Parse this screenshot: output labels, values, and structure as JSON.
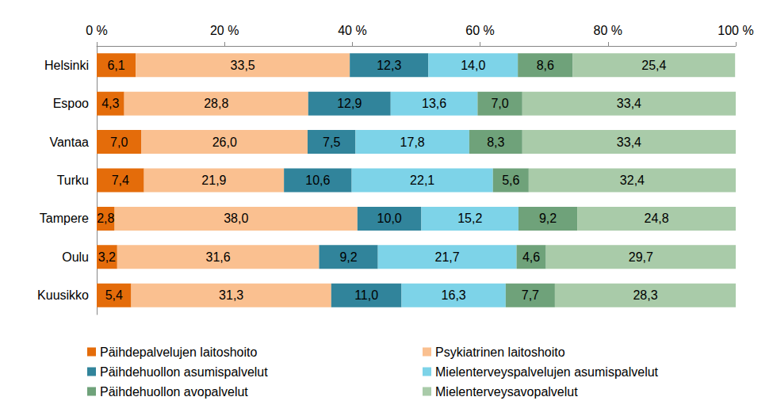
{
  "chart_data": {
    "type": "bar",
    "orientation": "horizontal",
    "stacked": true,
    "data_labels": true,
    "grid": false,
    "legend": "bottom",
    "categories": [
      "Helsinki",
      "Espoo",
      "Vantaa",
      "Turku",
      "Tampere",
      "Oulu",
      "Kuusikko"
    ],
    "xlim": [
      0,
      100
    ],
    "xticks": [
      {
        "value": 0,
        "label": "0 %"
      },
      {
        "value": 20,
        "label": "20 %"
      },
      {
        "value": 40,
        "label": "40 %"
      },
      {
        "value": 60,
        "label": "60 %"
      },
      {
        "value": 80,
        "label": "80 %"
      },
      {
        "value": 100,
        "label": "100 %"
      }
    ],
    "series": [
      {
        "name": "Päihdepalvelujen laitoshoito",
        "color": "#E46C0A",
        "values": [
          6.1,
          4.3,
          7.0,
          7.4,
          2.8,
          3.2,
          5.4
        ],
        "value_labels": [
          "6,1",
          "4,3",
          "7,0",
          "7,4",
          "2,8",
          "3,2",
          "5,4"
        ]
      },
      {
        "name": "Psykiatrinen laitoshoito",
        "color": "#FAC090",
        "values": [
          33.5,
          28.8,
          26.0,
          21.9,
          38.0,
          31.6,
          31.3
        ],
        "value_labels": [
          "33,5",
          "28,8",
          "26,0",
          "21,9",
          "38,0",
          "31,6",
          "31,3"
        ]
      },
      {
        "name": "Päihdehuollon asumispalvelut",
        "color": "#31849B",
        "values": [
          12.3,
          12.9,
          7.5,
          10.6,
          10.0,
          9.2,
          11.0
        ],
        "value_labels": [
          "12,3",
          "12,9",
          "7,5",
          "10,6",
          "10,0",
          "9,2",
          "11,0"
        ]
      },
      {
        "name": "Mielenterveyspalvelujen asumispalvelut",
        "color": "#7DD3E8",
        "values": [
          14.0,
          13.6,
          17.8,
          22.1,
          15.2,
          21.7,
          16.3
        ],
        "value_labels": [
          "14,0",
          "13,6",
          "17,8",
          "22,1",
          "15,2",
          "21,7",
          "16,3"
        ]
      },
      {
        "name": "Päihdehuollon avopalvelut",
        "color": "#6FA27A",
        "values": [
          8.6,
          7.0,
          8.3,
          5.6,
          9.2,
          4.6,
          7.7
        ],
        "value_labels": [
          "8,6",
          "7,0",
          "8,3",
          "5,6",
          "9,2",
          "4,6",
          "7,7"
        ]
      },
      {
        "name": "Mielenterveysavopalvelut",
        "color": "#A9CBA9",
        "values": [
          25.4,
          33.4,
          33.4,
          32.4,
          24.8,
          29.7,
          28.3
        ],
        "value_labels": [
          "25,4",
          "33,4",
          "33,4",
          "32,4",
          "24,8",
          "29,7",
          "28,3"
        ]
      }
    ]
  }
}
